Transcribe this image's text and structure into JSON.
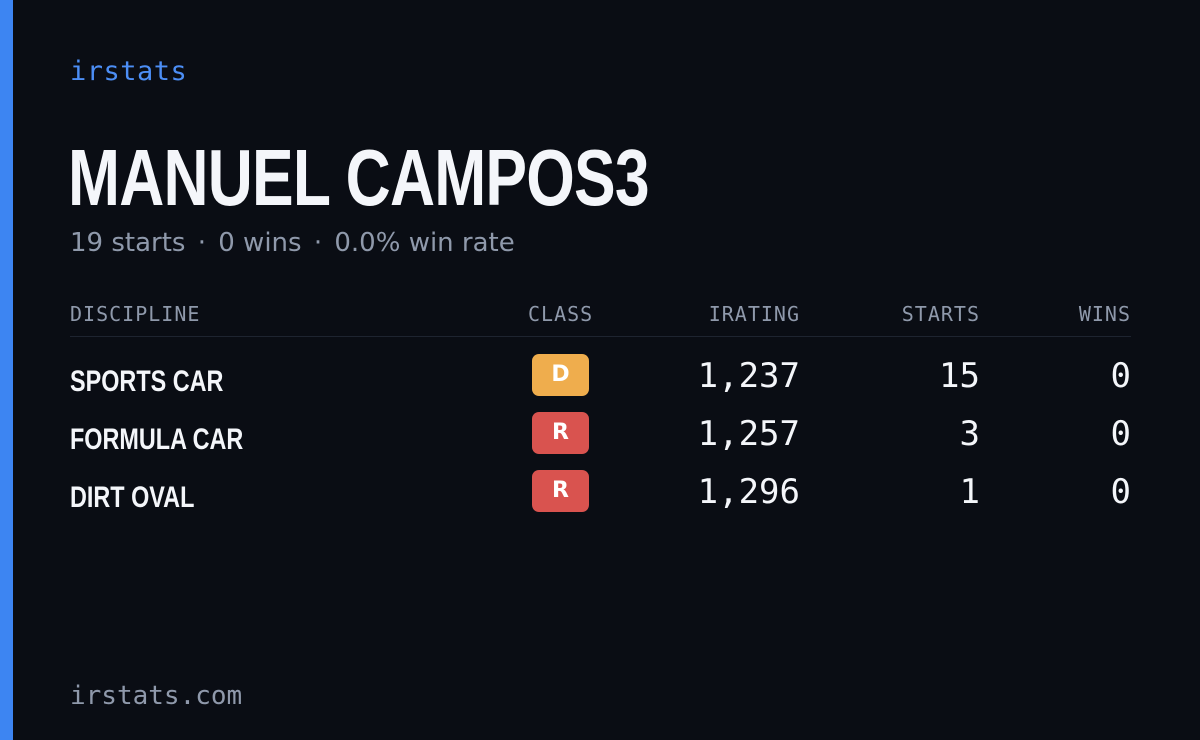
{
  "brand": "irstats",
  "player": {
    "name": "MANUEL CAMPOS3",
    "summary": {
      "starts": "19 starts",
      "wins": "0 wins",
      "win_rate": "0.0% win rate",
      "separator": "·"
    }
  },
  "table": {
    "headers": {
      "discipline": "DISCIPLINE",
      "class": "CLASS",
      "irating": "IRATING",
      "starts": "STARTS",
      "wins": "WINS"
    },
    "rows": [
      {
        "discipline": "SPORTS CAR",
        "class": "D",
        "class_color": "#efad4d",
        "irating": "1,237",
        "starts": "15",
        "wins": "0"
      },
      {
        "discipline": "FORMULA CAR",
        "class": "R",
        "class_color": "#d9534f",
        "irating": "1,257",
        "starts": "3",
        "wins": "0"
      },
      {
        "discipline": "DIRT OVAL",
        "class": "R",
        "class_color": "#d9534f",
        "irating": "1,296",
        "starts": "1",
        "wins": "0"
      }
    ]
  },
  "footer": "irstats.com",
  "colors": {
    "background": "#0a0d14",
    "accent": "#3d85f2"
  }
}
